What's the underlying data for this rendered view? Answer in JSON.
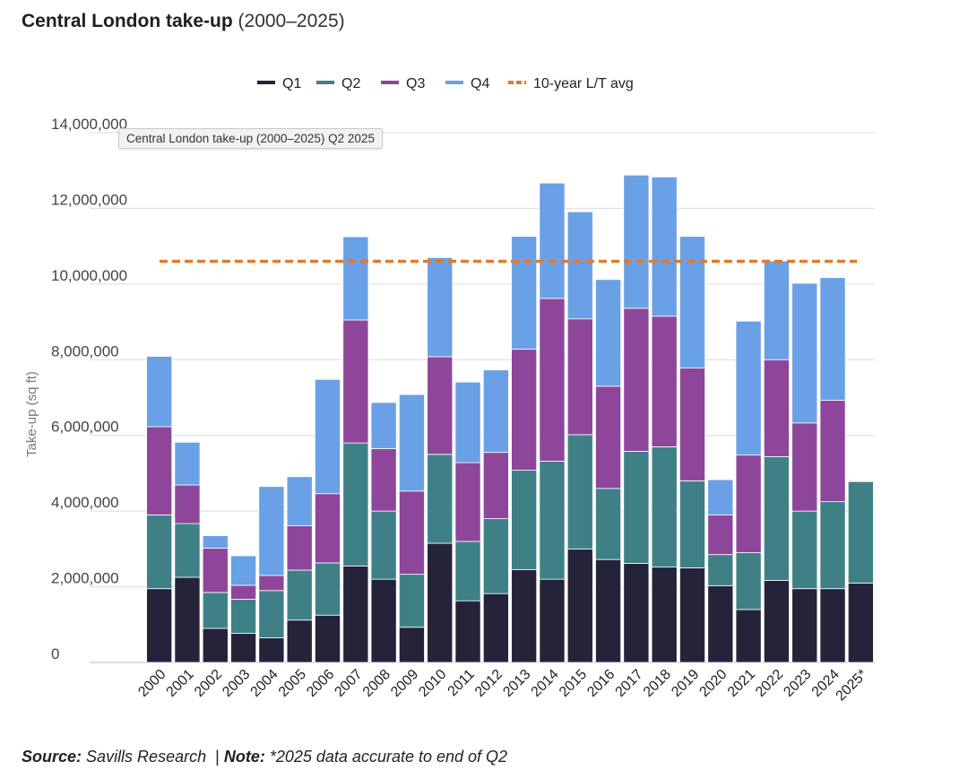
{
  "header": {
    "title_bold": "Central London take-up",
    "title_light": "(2000–2025)"
  },
  "tooltip": {
    "text": "Central London take-up (2000–2025) Q2 2025"
  },
  "footer": {
    "source_label": "Source:",
    "source_text": "Savills Research",
    "separator": "|",
    "note_label": "Note:",
    "note_text": "*2025 data accurate to end of Q2"
  },
  "chart_data": {
    "type": "bar",
    "stacked": true,
    "title": "Central London take-up (2000–2025)",
    "ylabel": "Take-up (sq ft)",
    "xlabel": "",
    "ylim": [
      0,
      14000000
    ],
    "yticks": [
      0,
      2000000,
      4000000,
      6000000,
      8000000,
      10000000,
      12000000,
      14000000
    ],
    "ytick_labels": [
      "0",
      "2,000,000",
      "4,000,000",
      "6,000,000",
      "8,000,000",
      "10,000,000",
      "12,000,000",
      "14,000,000"
    ],
    "grid": true,
    "legend_position": "top-center",
    "categories": [
      "2000",
      "2001",
      "2002",
      "2003",
      "2004",
      "2005",
      "2006",
      "2007",
      "2008",
      "2009",
      "2010",
      "2011",
      "2012",
      "2013",
      "2014",
      "2015",
      "2016",
      "2017",
      "2018",
      "2019",
      "2020",
      "2021",
      "2022",
      "2023",
      "2024",
      "2025*"
    ],
    "series": [
      {
        "name": "Q1",
        "color": "#24233a",
        "values": [
          1950000,
          2250000,
          900000,
          770000,
          650000,
          1120000,
          1250000,
          2550000,
          2200000,
          930000,
          3150000,
          1630000,
          1820000,
          2450000,
          2200000,
          3000000,
          2720000,
          2620000,
          2520000,
          2500000,
          2030000,
          1400000,
          2170000,
          1950000,
          1950000,
          2100000
        ]
      },
      {
        "name": "Q2",
        "color": "#3f8087",
        "values": [
          1950000,
          1420000,
          950000,
          900000,
          1250000,
          1320000,
          1380000,
          3250000,
          1800000,
          1400000,
          2350000,
          1570000,
          1980000,
          2630000,
          3120000,
          3020000,
          1880000,
          2960000,
          3180000,
          2300000,
          820000,
          1500000,
          3270000,
          2050000,
          2300000,
          2680000
        ]
      },
      {
        "name": "Q3",
        "color": "#8e469a",
        "values": [
          2330000,
          1020000,
          1170000,
          370000,
          400000,
          1170000,
          1830000,
          3250000,
          1650000,
          2200000,
          2580000,
          2080000,
          1750000,
          3200000,
          4300000,
          3060000,
          2700000,
          3780000,
          3450000,
          2980000,
          1050000,
          2580000,
          2560000,
          2330000,
          2680000,
          0
        ]
      },
      {
        "name": "Q4",
        "color": "#6aa0e6",
        "values": [
          1860000,
          1130000,
          330000,
          780000,
          2350000,
          1300000,
          3020000,
          2200000,
          1220000,
          2550000,
          2620000,
          2130000,
          2180000,
          2980000,
          3050000,
          2830000,
          2820000,
          3520000,
          3680000,
          3480000,
          930000,
          3540000,
          2610000,
          3690000,
          3240000,
          0
        ]
      }
    ],
    "reference_line": {
      "name": "10-year L/T avg",
      "value": 10600000,
      "color": "#e07b2e",
      "style": "dashed"
    }
  }
}
